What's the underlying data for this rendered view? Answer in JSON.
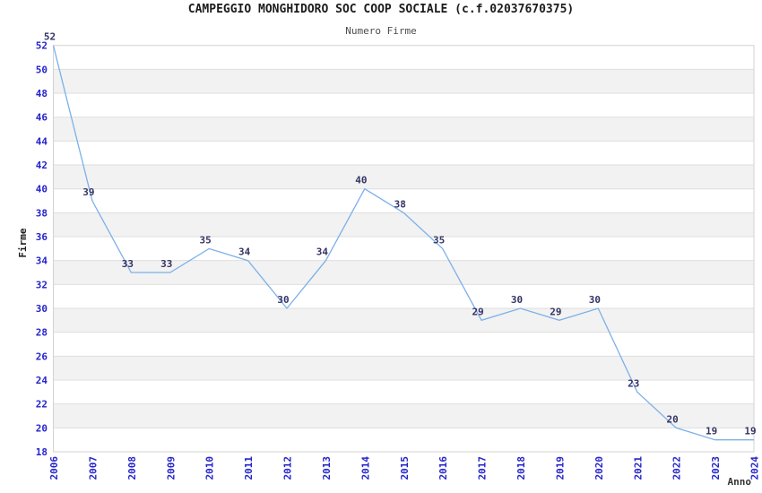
{
  "chart_data": {
    "type": "line",
    "title": "CAMPEGGIO MONGHIDORO SOC COOP SOCIALE (c.f.02037670375)",
    "subtitle": "Numero Firme",
    "xlabel": "Anno",
    "ylabel": "Firme",
    "categories": [
      "2006",
      "2007",
      "2008",
      "2009",
      "2010",
      "2011",
      "2012",
      "2013",
      "2014",
      "2015",
      "2016",
      "2017",
      "2018",
      "2019",
      "2020",
      "2021",
      "2022",
      "2023",
      "2024"
    ],
    "values": [
      52,
      39,
      33,
      33,
      35,
      34,
      30,
      34,
      40,
      38,
      35,
      29,
      30,
      29,
      30,
      23,
      20,
      19,
      19
    ],
    "ylim": [
      18,
      52
    ],
    "ytick_step": 2,
    "grid": "horizontal gridlines with alternating shaded bands every 2 units",
    "legend": "none",
    "point_labels_shown": true,
    "colors": {
      "line": "#7db0e8",
      "tick_labels": "#2424cc",
      "point_labels": "#333366",
      "band_fill": "#f2f2f2",
      "grid_line": "#dedede",
      "plot_border": "#d3d3d3",
      "title": "#1c1c1c",
      "subtitle": "#4d4d4d",
      "axis_titles": "#333333",
      "background": "#ffffff"
    }
  }
}
